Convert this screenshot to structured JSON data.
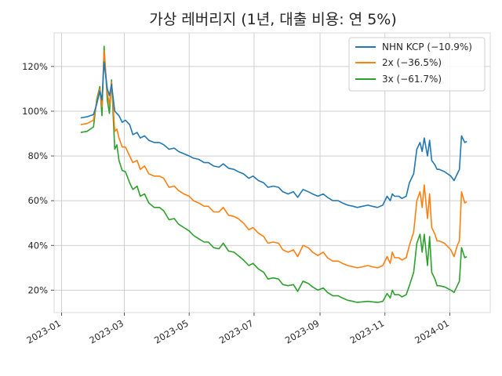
{
  "chart_data": {
    "type": "line",
    "title": "가상 레버리지 (1년, 대출 비용: 연 5%)",
    "xlabel": "",
    "ylabel": "",
    "ylim": [
      0.1,
      1.35
    ],
    "xlim": [
      "2022-12-25",
      "2024-02-08"
    ],
    "yticks": [
      0.2,
      0.4,
      0.6,
      0.8,
      1.0,
      1.2
    ],
    "ytick_labels": [
      "20%",
      "40%",
      "60%",
      "80%",
      "100%",
      "120%"
    ],
    "xticks": [
      "2023-01-01",
      "2023-03-01",
      "2023-05-01",
      "2023-07-01",
      "2023-09-01",
      "2023-11-01",
      "2024-01-01"
    ],
    "xtick_labels": [
      "2023-01",
      "2023-03",
      "2023-05",
      "2023-07",
      "2023-09",
      "2023-11",
      "2024-01"
    ],
    "grid": true,
    "legend_position": "top-right",
    "x": [
      "2023-01-19",
      "2023-01-25",
      "2023-01-31",
      "2023-02-03",
      "2023-02-06",
      "2023-02-08",
      "2023-02-10",
      "2023-02-13",
      "2023-02-15",
      "2023-02-17",
      "2023-02-20",
      "2023-02-22",
      "2023-02-24",
      "2023-02-27",
      "2023-03-02",
      "2023-03-06",
      "2023-03-09",
      "2023-03-13",
      "2023-03-16",
      "2023-03-20",
      "2023-03-24",
      "2023-03-29",
      "2023-04-03",
      "2023-04-07",
      "2023-04-12",
      "2023-04-17",
      "2023-04-21",
      "2023-04-26",
      "2023-05-01",
      "2023-05-05",
      "2023-05-10",
      "2023-05-15",
      "2023-05-19",
      "2023-05-24",
      "2023-05-29",
      "2023-06-02",
      "2023-06-07",
      "2023-06-12",
      "2023-06-16",
      "2023-06-21",
      "2023-06-26",
      "2023-06-30",
      "2023-07-05",
      "2023-07-10",
      "2023-07-14",
      "2023-07-19",
      "2023-07-24",
      "2023-07-28",
      "2023-08-02",
      "2023-08-07",
      "2023-08-11",
      "2023-08-16",
      "2023-08-21",
      "2023-08-25",
      "2023-08-30",
      "2023-09-04",
      "2023-09-08",
      "2023-09-13",
      "2023-09-18",
      "2023-09-22",
      "2023-09-27",
      "2023-10-02",
      "2023-10-06",
      "2023-10-11",
      "2023-10-16",
      "2023-10-20",
      "2023-10-25",
      "2023-10-30",
      "2023-11-03",
      "2023-11-06",
      "2023-11-08",
      "2023-11-10",
      "2023-11-14",
      "2023-11-17",
      "2023-11-21",
      "2023-11-24",
      "2023-11-28",
      "2023-12-01",
      "2023-12-04",
      "2023-12-06",
      "2023-12-08",
      "2023-12-11",
      "2023-12-13",
      "2023-12-15",
      "2023-12-18",
      "2023-12-20",
      "2023-12-22",
      "2023-12-27",
      "2024-01-02",
      "2024-01-05",
      "2024-01-08",
      "2024-01-10",
      "2024-01-12",
      "2024-01-15",
      "2024-01-17"
    ],
    "series": [
      {
        "name": "NHN KCP (−10.9%)",
        "color": "#1f77b4",
        "values": [
          0.97,
          0.975,
          0.985,
          1.03,
          1.09,
          1.05,
          1.22,
          1.1,
          1.07,
          1.12,
          1.0,
          0.99,
          0.98,
          0.95,
          0.96,
          0.94,
          0.895,
          0.905,
          0.88,
          0.89,
          0.87,
          0.86,
          0.86,
          0.85,
          0.83,
          0.835,
          0.82,
          0.81,
          0.8,
          0.79,
          0.785,
          0.77,
          0.77,
          0.755,
          0.75,
          0.765,
          0.745,
          0.74,
          0.73,
          0.72,
          0.7,
          0.71,
          0.69,
          0.68,
          0.66,
          0.665,
          0.66,
          0.64,
          0.63,
          0.64,
          0.615,
          0.65,
          0.64,
          0.63,
          0.62,
          0.63,
          0.615,
          0.6,
          0.6,
          0.59,
          0.58,
          0.575,
          0.57,
          0.575,
          0.58,
          0.575,
          0.57,
          0.58,
          0.62,
          0.6,
          0.63,
          0.62,
          0.62,
          0.61,
          0.62,
          0.68,
          0.72,
          0.83,
          0.86,
          0.82,
          0.88,
          0.8,
          0.87,
          0.78,
          0.76,
          0.74,
          0.74,
          0.73,
          0.71,
          0.69,
          0.72,
          0.74,
          0.89,
          0.86,
          0.865
        ]
      },
      {
        "name": "2x (−36.5%)",
        "color": "#ff7f0e",
        "values": [
          0.94,
          0.945,
          0.96,
          1.04,
          1.1,
          1.02,
          1.27,
          1.08,
          1.03,
          1.13,
          0.91,
          0.92,
          0.88,
          0.84,
          0.84,
          0.8,
          0.77,
          0.78,
          0.74,
          0.755,
          0.72,
          0.71,
          0.71,
          0.7,
          0.66,
          0.665,
          0.645,
          0.63,
          0.62,
          0.6,
          0.59,
          0.575,
          0.575,
          0.55,
          0.55,
          0.57,
          0.535,
          0.53,
          0.52,
          0.5,
          0.47,
          0.48,
          0.455,
          0.44,
          0.41,
          0.415,
          0.41,
          0.38,
          0.37,
          0.38,
          0.35,
          0.4,
          0.39,
          0.37,
          0.355,
          0.37,
          0.345,
          0.33,
          0.33,
          0.32,
          0.31,
          0.305,
          0.3,
          0.305,
          0.31,
          0.305,
          0.3,
          0.31,
          0.35,
          0.32,
          0.37,
          0.345,
          0.345,
          0.335,
          0.345,
          0.4,
          0.46,
          0.6,
          0.64,
          0.57,
          0.67,
          0.52,
          0.63,
          0.48,
          0.45,
          0.42,
          0.42,
          0.41,
          0.38,
          0.35,
          0.4,
          0.42,
          0.64,
          0.59,
          0.595
        ]
      },
      {
        "name": "3x (−61.7%)",
        "color": "#2ca02c",
        "values": [
          0.905,
          0.91,
          0.93,
          1.05,
          1.11,
          0.98,
          1.29,
          1.05,
          0.99,
          1.14,
          0.83,
          0.85,
          0.78,
          0.735,
          0.73,
          0.68,
          0.65,
          0.665,
          0.62,
          0.63,
          0.59,
          0.57,
          0.57,
          0.555,
          0.515,
          0.52,
          0.495,
          0.48,
          0.465,
          0.445,
          0.43,
          0.415,
          0.415,
          0.39,
          0.385,
          0.41,
          0.375,
          0.37,
          0.355,
          0.335,
          0.31,
          0.32,
          0.295,
          0.28,
          0.25,
          0.255,
          0.25,
          0.225,
          0.22,
          0.225,
          0.195,
          0.24,
          0.23,
          0.215,
          0.2,
          0.21,
          0.19,
          0.175,
          0.175,
          0.165,
          0.155,
          0.15,
          0.145,
          0.148,
          0.15,
          0.148,
          0.145,
          0.15,
          0.185,
          0.165,
          0.2,
          0.18,
          0.18,
          0.17,
          0.18,
          0.22,
          0.28,
          0.41,
          0.45,
          0.37,
          0.45,
          0.31,
          0.44,
          0.28,
          0.25,
          0.22,
          0.22,
          0.215,
          0.2,
          0.19,
          0.22,
          0.24,
          0.39,
          0.345,
          0.35
        ]
      }
    ]
  }
}
